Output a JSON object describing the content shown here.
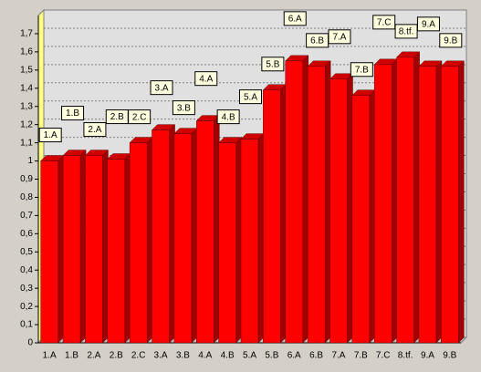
{
  "chart_data": {
    "type": "bar3d",
    "categories": [
      "1.A",
      "1.B",
      "2.A",
      "2.B",
      "2.C",
      "3.A",
      "3.B",
      "4.A",
      "4.B",
      "5.A",
      "5.B",
      "6.A",
      "6.B",
      "7.A",
      "7.B",
      "7.C",
      "8.tf.",
      "9.A",
      "9.B"
    ],
    "values": [
      1.0,
      1.03,
      1.03,
      1.01,
      1.1,
      1.17,
      1.15,
      1.22,
      1.1,
      1.12,
      1.39,
      1.55,
      1.52,
      1.45,
      1.36,
      1.53,
      1.57,
      1.52,
      1.52
    ],
    "color": "#ff0000",
    "ylim": [
      0,
      1.8
    ],
    "yticks": [
      0,
      {
        "value": 0.1,
        "label": "0,1"
      },
      {
        "value": 0.2,
        "label": "0,2"
      },
      {
        "value": 0.3,
        "label": "0,3"
      },
      {
        "value": 0.4,
        "label": "0,4"
      },
      {
        "value": 0.5,
        "label": "0,5"
      },
      {
        "value": 0.6,
        "label": "0,6"
      },
      {
        "value": 0.7,
        "label": "0,7"
      },
      {
        "value": 0.8,
        "label": "0,8"
      },
      {
        "value": 0.9,
        "label": "0,9"
      },
      1,
      {
        "value": 1.1,
        "label": "1,1"
      },
      {
        "value": 1.2,
        "label": "1,2"
      },
      {
        "value": 1.3,
        "label": "1,3"
      },
      {
        "value": 1.4,
        "label": "1,4"
      },
      {
        "value": 1.5,
        "label": "1,5"
      },
      {
        "value": 1.6,
        "label": "1,6"
      },
      {
        "value": 1.7,
        "label": "1,7"
      }
    ],
    "grid": true
  }
}
